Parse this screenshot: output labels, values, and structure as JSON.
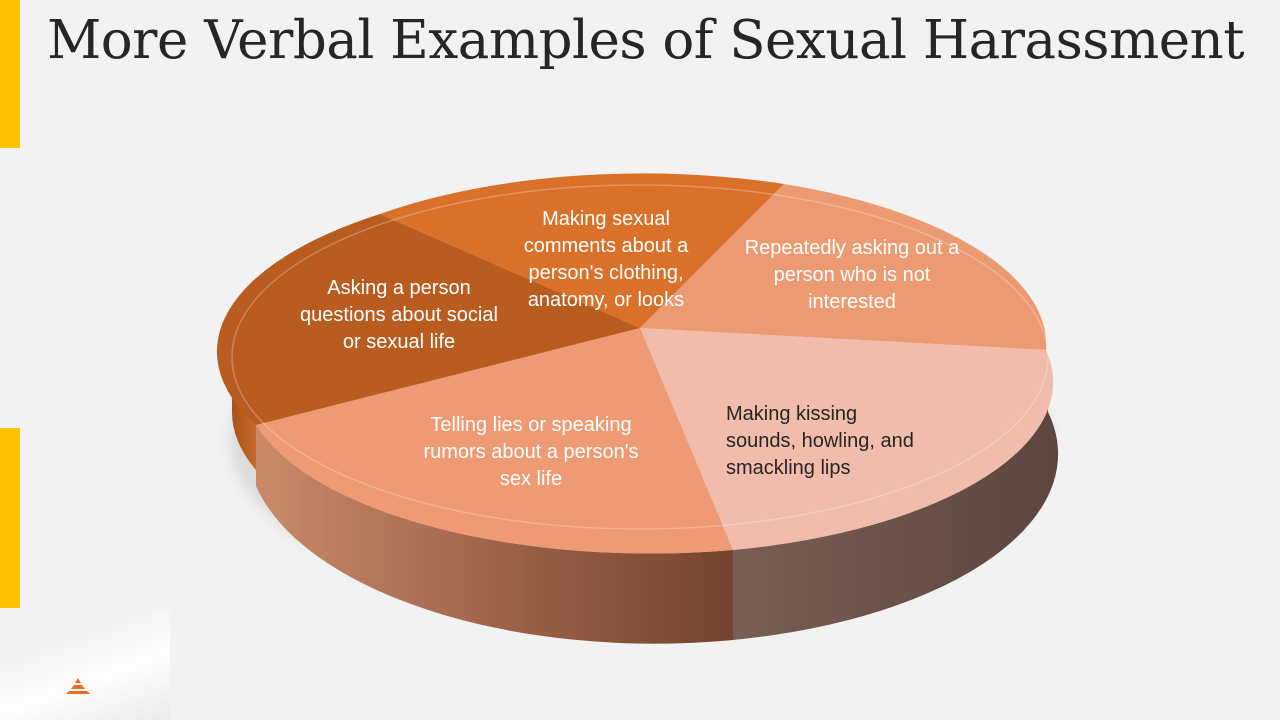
{
  "slide": {
    "title": "More Verbal Examples of Sexual Harassment",
    "accent_color": "#ffc000"
  },
  "diagram": {
    "type": "pie-3d",
    "segments": [
      {
        "label": "Making sexual comments about a person's clothing, anatomy, or looks",
        "color": "#d9712b",
        "text_color": "#ffffff"
      },
      {
        "label": "Repeatedly asking out a person who is not interested",
        "color": "#ec9a72",
        "text_color": "#ffffff"
      },
      {
        "label": "Making kissing sounds, howling, and smackling lips",
        "color": "#f1bcab",
        "text_color": "#262626"
      },
      {
        "label": "Telling lies or speaking rumors about a person's sex life",
        "color": "#ed9a75",
        "text_color": "#ffffff"
      },
      {
        "label": "Asking a person questions about social or sexual life",
        "color": "#b95c20",
        "text_color": "#ffffff"
      }
    ]
  },
  "logo": {
    "icon": "pyramid-logo-icon",
    "color": "#f26b21"
  }
}
